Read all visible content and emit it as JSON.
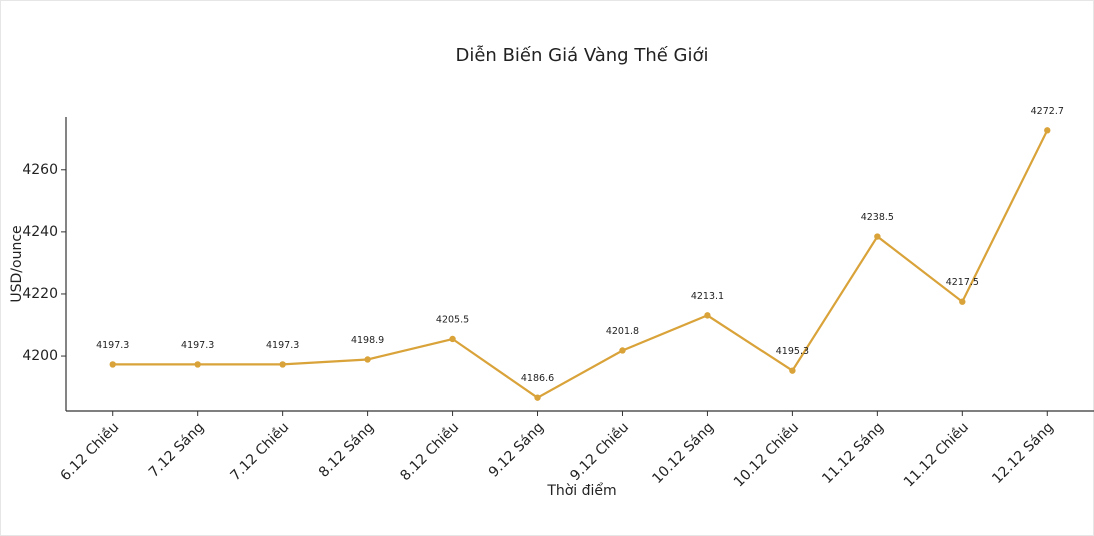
{
  "chart_data": {
    "type": "line",
    "title": "Diễn Biến Giá Vàng Thế Giới",
    "x_label": "Thời điểm",
    "y_label": "USD/ounce",
    "categories": [
      "6.12 Chiều",
      "7.12 Sáng",
      "7.12 Chiều",
      "8.12 Sáng",
      "8.12 Chiều",
      "9.12 Sáng",
      "9.12 Chiều",
      "10.12 Sáng",
      "10.12 Chiều",
      "11.12 Sáng",
      "11.12 Chiều",
      "12.12 Sáng"
    ],
    "values": [
      4197.3,
      4197.3,
      4197.3,
      4198.9,
      4205.5,
      4186.6,
      4201.8,
      4213.1,
      4195.3,
      4238.5,
      4217.5,
      4272.7
    ],
    "color": "#d9a33a",
    "ylim": [
      4182.3,
      4277.0
    ],
    "yticks": [
      4200,
      4220,
      4240,
      4260
    ],
    "grid": false
  }
}
